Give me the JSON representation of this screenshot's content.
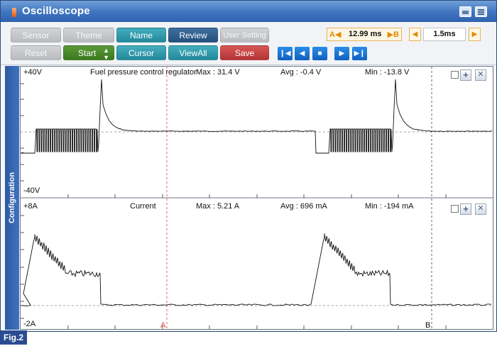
{
  "window": {
    "title": "Oscilloscope"
  },
  "toolbar": {
    "row1": [
      "Sensor",
      "Theme",
      "Name",
      "Review",
      "User Setting"
    ],
    "row2": [
      "Reset",
      "Start",
      "Cursor",
      "ViewAll",
      "Save"
    ]
  },
  "cursor": {
    "a_label": "A",
    "b_label": "B",
    "delta": "12.99 ms"
  },
  "timebase": {
    "value": "1.5ms"
  },
  "side_tab": {
    "label": "Configuration"
  },
  "channels": [
    {
      "top_scale": "+40V",
      "bottom_scale": "-40V",
      "name": "Fuel pressure control regulator",
      "max": "Max : 31.4 V",
      "avg": "Avg : -0.4 V",
      "min": "Min : -13.8 V"
    },
    {
      "top_scale": "+8A",
      "bottom_scale": "-2A",
      "name": "Current",
      "max": "Max : 5.21 A",
      "avg": "Avg : 696 mA",
      "min": "Min : -194 mA"
    }
  ],
  "markers": {
    "a": "A",
    "b": "B"
  },
  "caption": {
    "fig": "Fig.2"
  },
  "colors": {
    "title_bar": "#3f74bf",
    "teal": "#23889a",
    "navy": "#24507d",
    "green": "#3a7a1f",
    "red": "#b23434",
    "cursor_a": "#e04040"
  }
}
